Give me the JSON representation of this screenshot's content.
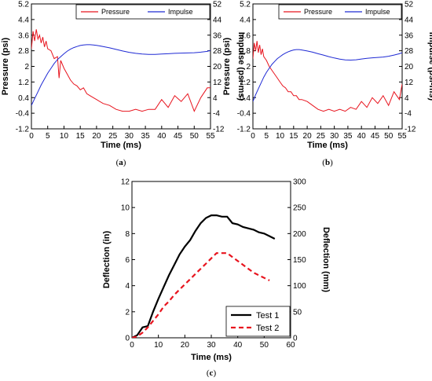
{
  "chart_data": [
    {
      "panel": "a",
      "caption": "a",
      "type": "line",
      "xlabel": "Time (ms)",
      "ylabel": "Pressure (psi)",
      "y2label": "Impulse (psi-ms)",
      "xlim": [
        0,
        55
      ],
      "ylim": [
        -1.2,
        5.2
      ],
      "y2lim": [
        -12,
        52
      ],
      "xticks": [
        "0",
        "5",
        "10",
        "15",
        "20",
        "25",
        "30",
        "35",
        "40",
        "45",
        "50",
        "55"
      ],
      "yticks": [
        "-1.2",
        "-0.4",
        "0.4",
        "1.2",
        "2",
        "2.8",
        "3.6",
        "4.4",
        "5.2"
      ],
      "y2ticks": [
        "-12",
        "-4",
        "4",
        "12",
        "20",
        "28",
        "36",
        "44",
        "52"
      ],
      "grid": false,
      "legend": "top-right",
      "colors": {
        "pressure": "#e8141e",
        "impulse": "#1f2ad4"
      },
      "series": [
        {
          "name": "Pressure",
          "axis": "left",
          "x": [
            0,
            0.5,
            1,
            1.5,
            2,
            2.5,
            3,
            3.5,
            4,
            4.5,
            5,
            6,
            7,
            8,
            8.5,
            9,
            10,
            11,
            12,
            13,
            14,
            15,
            16,
            17,
            18,
            19,
            20,
            22,
            24,
            26,
            28,
            30,
            32,
            34,
            36,
            38,
            40,
            42,
            44,
            46,
            48,
            50,
            52,
            54,
            55
          ],
          "y": [
            2.9,
            3.8,
            3.3,
            3.9,
            3.4,
            3.6,
            3.2,
            3.5,
            3.0,
            3.3,
            2.9,
            2.8,
            2.4,
            2.5,
            1.4,
            2.3,
            1.9,
            1.6,
            1.3,
            1.1,
            1.0,
            0.8,
            0.9,
            0.6,
            0.5,
            0.4,
            0.3,
            0.1,
            0.0,
            -0.2,
            -0.3,
            -0.3,
            -0.2,
            -0.3,
            -0.2,
            -0.2,
            0.3,
            -0.1,
            0.5,
            0.2,
            0.6,
            -0.3,
            0.4,
            0.9,
            0.9
          ]
        },
        {
          "name": "Impulse",
          "axis": "right",
          "x": [
            0,
            1,
            2,
            3,
            4,
            5,
            6,
            7,
            8,
            9,
            10,
            11,
            12,
            13,
            14,
            15,
            16,
            17,
            18,
            19,
            20,
            22,
            24,
            26,
            28,
            30,
            32,
            34,
            36,
            38,
            40,
            42,
            44,
            46,
            48,
            50,
            52,
            54,
            55
          ],
          "y": [
            0,
            3.5,
            7,
            10.5,
            13.5,
            16.5,
            19,
            21.5,
            23.5,
            25,
            26.5,
            27.8,
            28.8,
            29.6,
            30.2,
            30.7,
            31.0,
            31.1,
            31.1,
            31.0,
            30.8,
            30.2,
            29.5,
            28.7,
            27.9,
            27.2,
            26.7,
            26.3,
            26.1,
            26.1,
            26.3,
            26.5,
            26.7,
            26.8,
            26.9,
            27.0,
            27.3,
            27.7,
            28.2
          ]
        }
      ]
    },
    {
      "panel": "b",
      "caption": "b",
      "type": "line",
      "xlabel": "Time (ms)",
      "ylabel": "Pressure (psi)",
      "y2label": "Impulse (psi-ms)",
      "xlim": [
        0,
        55
      ],
      "ylim": [
        -1.2,
        5.2
      ],
      "y2lim": [
        -12,
        52
      ],
      "xticks": [
        "0",
        "5",
        "10",
        "15",
        "20",
        "25",
        "30",
        "35",
        "40",
        "45",
        "50",
        "55"
      ],
      "yticks": [
        "-1.2",
        "-0.4",
        "0.4",
        "1.2",
        "2",
        "2.8",
        "3.6",
        "4.4",
        "5.2"
      ],
      "y2ticks": [
        "-12",
        "-4",
        "4",
        "12",
        "20",
        "28",
        "36",
        "44",
        "52"
      ],
      "grid": false,
      "legend": "top-right",
      "colors": {
        "pressure": "#e8141e",
        "impulse": "#1f2ad4"
      },
      "series": [
        {
          "name": "Pressure",
          "axis": "left",
          "x": [
            0,
            0.5,
            1,
            1.5,
            2,
            2.5,
            3,
            3.5,
            4,
            5,
            6,
            7,
            8,
            9,
            10,
            11,
            12,
            13,
            14,
            15,
            16,
            17,
            18,
            20,
            22,
            24,
            26,
            28,
            30,
            32,
            34,
            36,
            38,
            40,
            42,
            44,
            46,
            48,
            50,
            52,
            54,
            55
          ],
          "y": [
            2.4,
            3.2,
            2.8,
            3.3,
            2.7,
            3.1,
            2.6,
            2.9,
            2.5,
            2.3,
            2.0,
            1.8,
            1.6,
            1.4,
            1.2,
            1.0,
            0.9,
            0.7,
            0.7,
            0.5,
            0.5,
            0.3,
            0.3,
            0.2,
            0.0,
            -0.2,
            -0.3,
            -0.2,
            -0.3,
            -0.2,
            -0.3,
            -0.1,
            -0.2,
            0.2,
            -0.1,
            0.4,
            0.1,
            0.5,
            0.0,
            0.7,
            0.3,
            1.1
          ]
        },
        {
          "name": "Impulse",
          "axis": "right",
          "x": [
            0,
            1,
            2,
            3,
            4,
            5,
            6,
            7,
            8,
            9,
            10,
            11,
            12,
            13,
            14,
            15,
            16,
            17,
            18,
            20,
            22,
            24,
            26,
            28,
            30,
            32,
            34,
            36,
            38,
            40,
            42,
            44,
            46,
            48,
            50,
            52,
            54,
            55
          ],
          "y": [
            2,
            5.5,
            8.5,
            11.5,
            14.5,
            17,
            19,
            21,
            22.5,
            24,
            25,
            26,
            26.8,
            27.5,
            28,
            28.4,
            28.6,
            28.6,
            28.4,
            27.9,
            27.3,
            26.5,
            25.8,
            25.0,
            24.3,
            23.7,
            23.3,
            23.2,
            23.4,
            23.8,
            24.1,
            24.4,
            24.6,
            24.8,
            25.2,
            25.8,
            26.5,
            27.0
          ]
        }
      ]
    },
    {
      "panel": "c",
      "caption": "c",
      "type": "line",
      "xlabel": "Time (ms)",
      "ylabel": "Deflection (in)",
      "y2label": "Deflection (mm)",
      "xlim": [
        0,
        60
      ],
      "ylim": [
        0,
        12
      ],
      "y2lim": [
        0,
        300
      ],
      "xticks": [
        "0",
        "10",
        "20",
        "30",
        "40",
        "50",
        "60"
      ],
      "yticks": [
        "0",
        "2",
        "4",
        "6",
        "8",
        "10",
        "12"
      ],
      "y2ticks": [
        "0",
        "50",
        "100",
        "150",
        "200",
        "250",
        "300"
      ],
      "grid": false,
      "legend": "bottom-right",
      "colors": {
        "test1": "#000000",
        "test2": "#e8141e"
      },
      "series": [
        {
          "name": "Test 1",
          "style": "solid",
          "x": [
            0,
            2,
            4,
            6,
            8,
            10,
            12,
            14,
            16,
            18,
            20,
            22,
            24,
            26,
            28,
            30,
            32,
            34,
            36,
            38,
            40,
            42,
            44,
            46,
            48,
            50,
            52,
            54
          ],
          "y": [
            0,
            0.2,
            0.8,
            0.9,
            2.0,
            3.0,
            3.9,
            4.8,
            5.6,
            6.4,
            7.0,
            7.5,
            8.2,
            8.8,
            9.2,
            9.4,
            9.4,
            9.3,
            9.3,
            8.8,
            8.7,
            8.5,
            8.4,
            8.3,
            8.1,
            8.0,
            7.8,
            7.6
          ]
        },
        {
          "name": "Test 2",
          "style": "dashed",
          "x": [
            0,
            2,
            4,
            6,
            8,
            10,
            12,
            14,
            16,
            18,
            20,
            22,
            24,
            26,
            28,
            30,
            32,
            34,
            36,
            38,
            40,
            42,
            44,
            46,
            48,
            50,
            52
          ],
          "y": [
            0,
            0.1,
            0.4,
            0.8,
            1.3,
            1.8,
            2.4,
            2.8,
            3.3,
            3.7,
            4.1,
            4.5,
            4.9,
            5.3,
            5.7,
            6.1,
            6.5,
            6.5,
            6.5,
            6.2,
            5.9,
            5.6,
            5.3,
            5.0,
            4.8,
            4.6,
            4.4
          ]
        }
      ]
    }
  ]
}
